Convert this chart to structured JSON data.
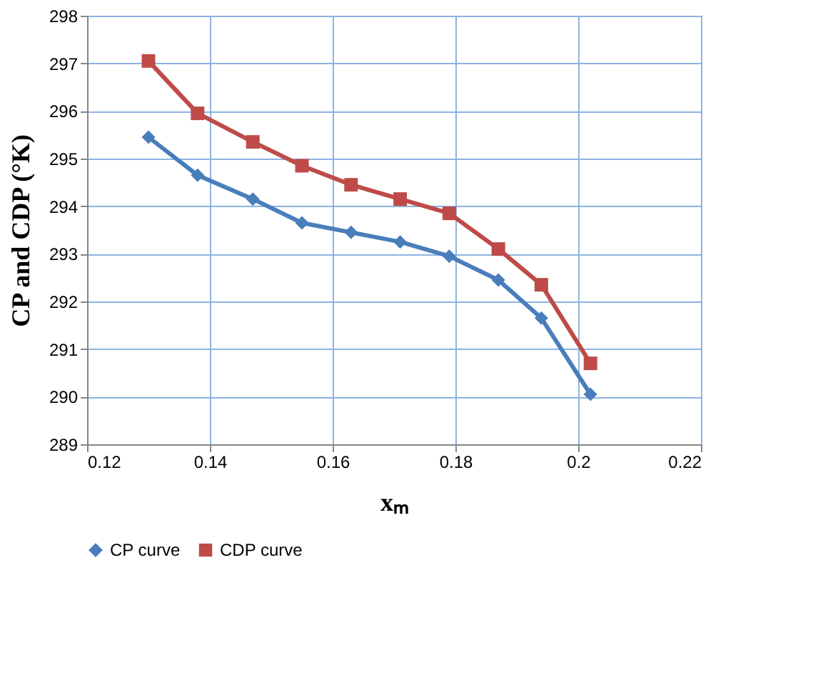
{
  "chart_data": {
    "type": "line",
    "xlabel": "xₘ",
    "ylabel": "CP and CDP (°K)",
    "x": [
      0.13,
      0.138,
      0.147,
      0.155,
      0.163,
      0.171,
      0.179,
      0.187,
      0.194,
      0.202
    ],
    "series": [
      {
        "name": "CP curve",
        "color": "#4a7ebb",
        "marker": "diamond",
        "values": [
          295.45,
          294.65,
          294.15,
          293.65,
          293.45,
          293.25,
          292.95,
          292.45,
          291.65,
          290.05
        ]
      },
      {
        "name": "CDP curve",
        "color": "#be4b48",
        "marker": "square",
        "values": [
          297.05,
          295.95,
          295.35,
          294.85,
          294.45,
          294.15,
          293.85,
          293.1,
          292.35,
          290.7
        ]
      }
    ],
    "xlim": [
      0.12,
      0.22
    ],
    "xticks": [
      0.12,
      0.14,
      0.16,
      0.18,
      0.2,
      0.22
    ],
    "ylim": [
      289,
      298
    ],
    "yticks": [
      289,
      290,
      291,
      292,
      293,
      294,
      295,
      296,
      297,
      298
    ],
    "grid": true,
    "legend": "bottom",
    "line_style": "solid"
  }
}
